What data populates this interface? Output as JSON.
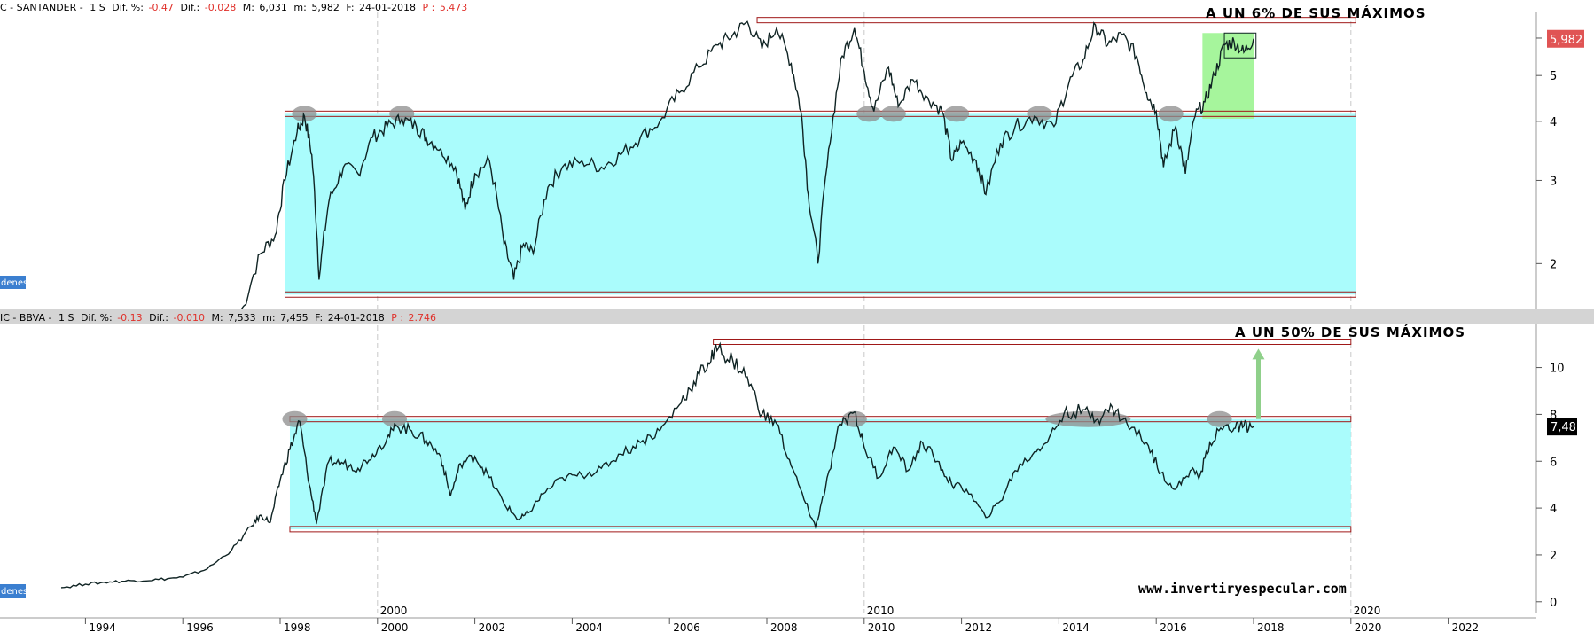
{
  "colors": {
    "zone_fill": "#aafcfc",
    "target_zone_fill": "#a6f59c",
    "level_line": "#a01818",
    "price_line": "#0f2323",
    "highlight": "#8c8c8c",
    "divider": "#d4d4d4",
    "arrow": "#8fd08a",
    "tag_blue": "#3b7fd0",
    "price_tag_red": "#e05454",
    "price_tag_black": "#000000"
  },
  "panels": [
    {
      "id": "santander",
      "header": {
        "name": "C - SANTANDER -",
        "period": "1 S",
        "dif_pct_label": "Dif. %:",
        "dif_pct_value": "-0.47",
        "dif_label": "Dif.:",
        "dif_value": "-0.028",
        "max_label": "M:",
        "max_value": "6,031",
        "min_label": "m:",
        "min_value": "5,982",
        "date_label": "F:",
        "date_value": "24-01-2018",
        "p_label": "P :",
        "p_value": "5.473"
      },
      "annotation": "A UN 6% DE SUS MÁXIMOS",
      "left_tag": "denes",
      "price_flag": "5,982",
      "axis": {
        "scale": "log",
        "ylim": [
          1.6,
          6.8
        ],
        "ticks": [
          "2",
          "3",
          "4",
          "5",
          "6"
        ],
        "tick_values": [
          2,
          3,
          4,
          5,
          6
        ]
      },
      "resistance": 4.15,
      "support": 1.72,
      "range_high": 6.55,
      "target_zone": {
        "x_from": 2016.95,
        "x_to": 2018.0,
        "low": 4.05,
        "high": 6.15
      },
      "highlight_x": [
        1998.5,
        2000.5,
        2010.1,
        2010.6,
        2011.9,
        2013.6,
        2016.3
      ],
      "series": [
        [
          1997.2,
          1.55
        ],
        [
          1997.6,
          2.1
        ],
        [
          1997.9,
          2.3
        ],
        [
          1998.1,
          3.0
        ],
        [
          1998.35,
          3.8
        ],
        [
          1998.5,
          4.1
        ],
        [
          1998.65,
          3.4
        ],
        [
          1998.8,
          1.85
        ],
        [
          1999.0,
          2.7
        ],
        [
          1999.3,
          3.2
        ],
        [
          1999.6,
          3.1
        ],
        [
          1999.9,
          3.7
        ],
        [
          2000.2,
          3.9
        ],
        [
          2000.5,
          4.05
        ],
        [
          2000.8,
          3.9
        ],
        [
          2001.0,
          3.7
        ],
        [
          2001.3,
          3.5
        ],
        [
          2001.6,
          3.2
        ],
        [
          2001.8,
          2.6
        ],
        [
          2002.0,
          3.1
        ],
        [
          2002.3,
          3.3
        ],
        [
          2002.6,
          2.2
        ],
        [
          2002.8,
          1.85
        ],
        [
          2003.0,
          2.2
        ],
        [
          2003.2,
          2.1
        ],
        [
          2003.5,
          2.9
        ],
        [
          2003.8,
          3.2
        ],
        [
          2004.2,
          3.3
        ],
        [
          2004.6,
          3.2
        ],
        [
          2005.0,
          3.4
        ],
        [
          2005.4,
          3.7
        ],
        [
          2005.8,
          4.0
        ],
        [
          2006.2,
          4.6
        ],
        [
          2006.6,
          5.2
        ],
        [
          2007.0,
          5.8
        ],
        [
          2007.3,
          6.1
        ],
        [
          2007.6,
          6.5
        ],
        [
          2007.9,
          5.7
        ],
        [
          2008.2,
          6.3
        ],
        [
          2008.5,
          5.3
        ],
        [
          2008.7,
          4.2
        ],
        [
          2008.85,
          2.8
        ],
        [
          2009.05,
          2.0
        ],
        [
          2009.3,
          3.6
        ],
        [
          2009.55,
          5.5
        ],
        [
          2009.8,
          6.3
        ],
        [
          2010.0,
          5.1
        ],
        [
          2010.2,
          4.2
        ],
        [
          2010.5,
          5.2
        ],
        [
          2010.7,
          4.3
        ],
        [
          2011.0,
          4.9
        ],
        [
          2011.3,
          4.5
        ],
        [
          2011.6,
          4.2
        ],
        [
          2011.8,
          3.3
        ],
        [
          2012.0,
          3.6
        ],
        [
          2012.3,
          3.3
        ],
        [
          2012.5,
          2.8
        ],
        [
          2012.8,
          3.6
        ],
        [
          2013.1,
          3.9
        ],
        [
          2013.5,
          4.1
        ],
        [
          2013.9,
          3.9
        ],
        [
          2014.2,
          4.8
        ],
        [
          2014.5,
          5.4
        ],
        [
          2014.75,
          6.4
        ],
        [
          2015.0,
          5.8
        ],
        [
          2015.3,
          6.1
        ],
        [
          2015.6,
          5.5
        ],
        [
          2015.8,
          4.6
        ],
        [
          2016.0,
          4.2
        ],
        [
          2016.15,
          3.2
        ],
        [
          2016.4,
          3.9
        ],
        [
          2016.6,
          3.1
        ],
        [
          2016.8,
          4.1
        ],
        [
          2017.0,
          4.4
        ],
        [
          2017.2,
          5.0
        ],
        [
          2017.4,
          5.8
        ],
        [
          2017.6,
          5.9
        ],
        [
          2017.8,
          5.6
        ],
        [
          2018.0,
          5.98
        ]
      ]
    },
    {
      "id": "bbva",
      "header": {
        "name": "IC - BBVA -",
        "period": "1 S",
        "dif_pct_label": "Dif. %:",
        "dif_pct_value": "-0.13",
        "dif_label": "Dif.:",
        "dif_value": "-0.010",
        "max_label": "M:",
        "max_value": "7,533",
        "min_label": "m:",
        "min_value": "7,455",
        "date_label": "F:",
        "date_value": "24-01-2018",
        "p_label": "P :",
        "p_value": "2.746"
      },
      "annotation": "A UN 50% DE SUS MÁXIMOS",
      "left_tag": "denes",
      "price_flag": "7,48",
      "axis": {
        "scale": "linear",
        "ylim": [
          -0.5,
          11.8
        ],
        "ticks": [
          "0",
          "2",
          "4",
          "6",
          "8",
          "10"
        ],
        "tick_values": [
          0,
          2,
          4,
          6,
          8,
          10
        ]
      },
      "resistance": 7.8,
      "support": 3.1,
      "range_high": 11.1,
      "arrow": {
        "x": 2018.1,
        "from": 7.8,
        "to": 10.8
      },
      "highlight_x": [
        1998.3,
        2000.35,
        2009.8,
        2014.6,
        2017.3
      ],
      "series": [
        [
          1993.5,
          0.6
        ],
        [
          1994.0,
          0.75
        ],
        [
          1994.5,
          0.85
        ],
        [
          1995.0,
          0.9
        ],
        [
          1995.5,
          0.95
        ],
        [
          1996.0,
          1.05
        ],
        [
          1996.5,
          1.4
        ],
        [
          1997.0,
          2.2
        ],
        [
          1997.4,
          3.2
        ],
        [
          1997.6,
          3.7
        ],
        [
          1997.8,
          3.4
        ],
        [
          1998.0,
          5.2
        ],
        [
          1998.2,
          6.5
        ],
        [
          1998.4,
          7.7
        ],
        [
          1998.6,
          5.0
        ],
        [
          1998.75,
          3.4
        ],
        [
          1999.0,
          6.0
        ],
        [
          1999.3,
          5.9
        ],
        [
          1999.6,
          5.7
        ],
        [
          1999.9,
          6.3
        ],
        [
          2000.2,
          7.0
        ],
        [
          2000.4,
          7.5
        ],
        [
          2000.7,
          7.3
        ],
        [
          2001.0,
          6.9
        ],
        [
          2001.3,
          6.2
        ],
        [
          2001.5,
          4.5
        ],
        [
          2001.7,
          5.9
        ],
        [
          2002.0,
          6.2
        ],
        [
          2002.3,
          5.3
        ],
        [
          2002.6,
          4.2
        ],
        [
          2002.9,
          3.5
        ],
        [
          2003.1,
          3.8
        ],
        [
          2003.4,
          4.6
        ],
        [
          2003.8,
          5.3
        ],
        [
          2004.2,
          5.4
        ],
        [
          2004.6,
          5.7
        ],
        [
          2005.0,
          6.3
        ],
        [
          2005.4,
          6.8
        ],
        [
          2005.8,
          7.3
        ],
        [
          2006.2,
          8.4
        ],
        [
          2006.5,
          9.4
        ],
        [
          2006.8,
          10.2
        ],
        [
          2007.0,
          10.8
        ],
        [
          2007.3,
          10.3
        ],
        [
          2007.6,
          9.6
        ],
        [
          2007.9,
          8.0
        ],
        [
          2008.2,
          7.6
        ],
        [
          2008.5,
          5.8
        ],
        [
          2008.8,
          4.2
        ],
        [
          2009.0,
          3.2
        ],
        [
          2009.2,
          4.8
        ],
        [
          2009.5,
          7.6
        ],
        [
          2009.8,
          8.1
        ],
        [
          2010.0,
          6.6
        ],
        [
          2010.3,
          5.3
        ],
        [
          2010.6,
          6.6
        ],
        [
          2010.9,
          5.6
        ],
        [
          2011.2,
          6.8
        ],
        [
          2011.5,
          6.0
        ],
        [
          2011.8,
          5.0
        ],
        [
          2012.1,
          4.8
        ],
        [
          2012.5,
          3.6
        ],
        [
          2012.8,
          4.3
        ],
        [
          2013.1,
          5.6
        ],
        [
          2013.5,
          6.4
        ],
        [
          2013.8,
          7.0
        ],
        [
          2014.1,
          8.0
        ],
        [
          2014.5,
          8.2
        ],
        [
          2014.8,
          7.8
        ],
        [
          2015.1,
          8.3
        ],
        [
          2015.4,
          7.6
        ],
        [
          2015.8,
          6.8
        ],
        [
          2016.1,
          5.5
        ],
        [
          2016.4,
          4.8
        ],
        [
          2016.7,
          5.6
        ],
        [
          2016.9,
          5.4
        ],
        [
          2017.1,
          6.8
        ],
        [
          2017.4,
          7.5
        ],
        [
          2017.6,
          7.4
        ],
        [
          2017.8,
          7.5
        ],
        [
          2018.0,
          7.48
        ]
      ]
    }
  ],
  "x_axis": {
    "ticks": [
      "1994",
      "1996",
      "1998",
      "2000",
      "2002",
      "2004",
      "2006",
      "2008",
      "2010",
      "2012",
      "2014",
      "2016",
      "2018",
      "2020",
      "2022"
    ],
    "tick_values": [
      1994,
      1996,
      1998,
      2000,
      2002,
      2004,
      2006,
      2008,
      2010,
      2012,
      2014,
      2016,
      2018,
      2020,
      2022
    ],
    "decade_labels": [
      "2000",
      "2010",
      "2020"
    ],
    "decade_values": [
      2000,
      2010,
      2020
    ]
  },
  "watermark": "www.invertiryespecular.com"
}
